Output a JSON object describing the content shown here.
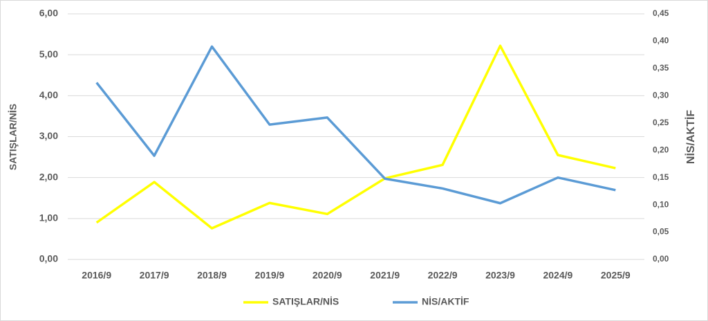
{
  "chart_data": {
    "type": "line",
    "categories": [
      "2016/9",
      "2017/9",
      "2018/9",
      "2019/9",
      "2020/9",
      "2021/9",
      "2022/9",
      "2023/9",
      "2024/9",
      "2025/9"
    ],
    "series": [
      {
        "name": "SATIŞLAR/NİS",
        "color": "#ffff00",
        "axis": "y",
        "values": [
          0.9,
          1.89,
          0.76,
          1.38,
          1.11,
          1.98,
          2.31,
          5.22,
          2.55,
          2.23
        ]
      },
      {
        "name": "NİS/AKTİF",
        "color": "#5b9bd5",
        "axis": "y2",
        "values": [
          0.324,
          0.19,
          0.39,
          0.247,
          0.26,
          0.148,
          0.13,
          0.103,
          0.15,
          0.127
        ]
      }
    ],
    "y_label": "SATIŞLAR/NİS",
    "y2_label": "NİS/AKTİF",
    "ylim": [
      0,
      6
    ],
    "yticks": [
      {
        "value": 0,
        "label": "0,00"
      },
      {
        "value": 1,
        "label": "1,00"
      },
      {
        "value": 2,
        "label": "2,00"
      },
      {
        "value": 3,
        "label": "3,00"
      },
      {
        "value": 4,
        "label": "4,00"
      },
      {
        "value": 5,
        "label": "5,00"
      },
      {
        "value": 6,
        "label": "6,00"
      }
    ],
    "y2lim": [
      0,
      0.45
    ],
    "y2ticks": [
      {
        "value": 0,
        "label": "0,00"
      },
      {
        "value": 0.05,
        "label": "0,05"
      },
      {
        "value": 0.1,
        "label": "0,10"
      },
      {
        "value": 0.15,
        "label": "0,15"
      },
      {
        "value": 0.2,
        "label": "0,20"
      },
      {
        "value": 0.25,
        "label": "0,25"
      },
      {
        "value": 0.3,
        "label": "0,30"
      },
      {
        "value": 0.35,
        "label": "0,35"
      },
      {
        "value": 0.4,
        "label": "0,40"
      },
      {
        "value": 0.45,
        "label": "0,45"
      }
    ],
    "grid": true,
    "legend": "bottom"
  }
}
